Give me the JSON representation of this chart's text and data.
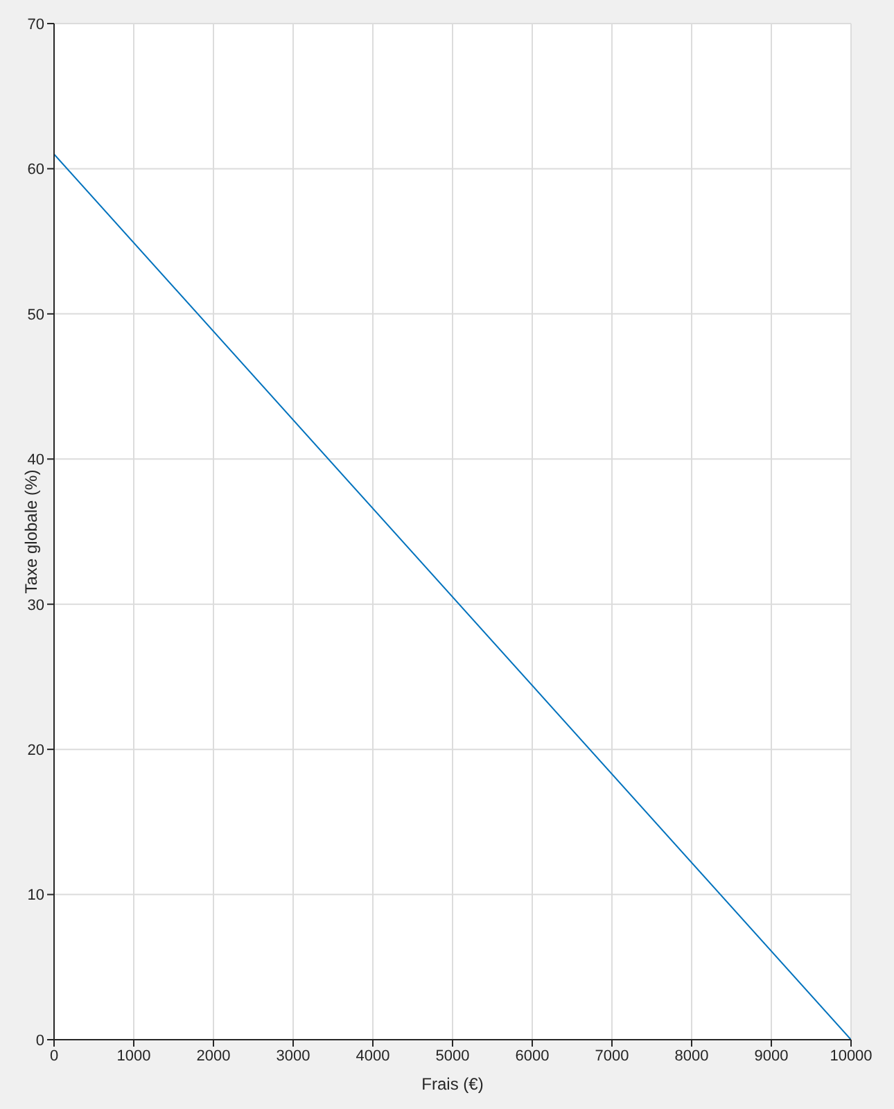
{
  "chart_data": {
    "type": "line",
    "xlabel": "Frais (€)",
    "ylabel": "Taxe globale (%)",
    "x": [
      0,
      10000
    ],
    "series": [
      {
        "color": "#0072bd",
        "values": [
          61,
          0
        ]
      }
    ],
    "xlim": [
      0,
      10000
    ],
    "xticks": [
      0,
      1000,
      2000,
      3000,
      4000,
      5000,
      6000,
      7000,
      8000,
      9000,
      10000
    ],
    "ylim": [
      0,
      70
    ],
    "yticks": [
      0,
      10,
      20,
      30,
      40,
      50,
      60,
      70
    ],
    "grid": true,
    "marker": "none",
    "line_style": "solid"
  }
}
